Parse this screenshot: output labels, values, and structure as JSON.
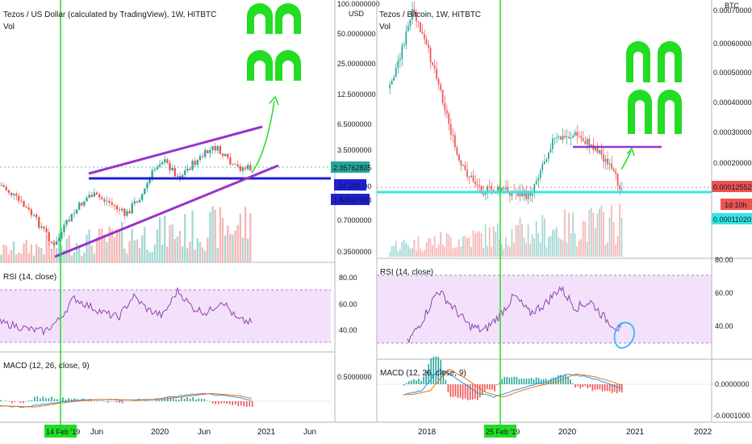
{
  "left_chart": {
    "title": "Tezos / US Dollar (calculated by TradingView), 1W, HITBTC",
    "vol_label": "Vol",
    "currency": "USD",
    "price_scale": [
      "100.0000000",
      "50.0000000",
      "25.0000000",
      "12.5000000",
      "6.5000000",
      "3.5000000",
      "1.5000000",
      "0.7000000",
      "0.3500000"
    ],
    "last_price": "2.35762835",
    "countdown": "1d 10h",
    "level_price": "1.84517693",
    "rsi_label": "RSI (14, close)",
    "rsi_scale": [
      "80.00",
      "60.00",
      "40.00"
    ],
    "macd_label": "MACD (12, 26, close, 9)",
    "macd_scale": [
      "0.5000000"
    ],
    "time_axis": [
      "Jun",
      "2020",
      "Jun",
      "2021",
      "Jun"
    ],
    "highlighted_date": "14 Feb '19"
  },
  "right_chart": {
    "title": "Tezos / Bitcoin, 1W, HITBTC",
    "vol_label": "Vol",
    "currency": "BTC",
    "price_scale": [
      "0.00070000",
      "0.00060000",
      "0.00050000",
      "0.00040000",
      "0.00030000",
      "0.00020000"
    ],
    "last_price": "0.00012552",
    "countdown": "1d 10h",
    "level_price": "0.00011020",
    "rsi_label": "RSI (14, close)",
    "rsi_scale": [
      "80.00",
      "60.00",
      "40.00"
    ],
    "macd_label": "MACD (12, 26, close, 9)",
    "macd_scale": [
      "0.0000000",
      "-0.0001000"
    ],
    "time_axis": [
      "2018",
      "2019",
      "2020",
      "2021",
      "2022"
    ],
    "highlighted_date": "25 Feb '19"
  },
  "colors": {
    "bull": "#26a69a",
    "bear": "#ef5350",
    "rsi_line": "#8e44ad",
    "rsi_band": "#f3e1fb",
    "vertical_marker": "#22dd22",
    "support_blue": "#1f1fd6",
    "support_cyan": "#33e6e6",
    "channel": "#9933cc",
    "arrow": "#22dd22",
    "macd_line": "#2196f3",
    "signal_line": "#ff6d00",
    "circle": "#33bbee"
  },
  "chart_data": [
    {
      "type": "line",
      "title": "Tezos / US Dollar (calculated by TradingView), 1W, HITBTC",
      "y_scale": "log",
      "x": [
        "2019-02",
        "2019-04",
        "2019-06",
        "2019-08",
        "2019-10",
        "2019-12",
        "2020-02",
        "2020-04",
        "2020-06",
        "2020-08",
        "2020-10",
        "2020-11"
      ],
      "series": [
        {
          "values": [
            0.38,
            0.8,
            1.3,
            1.1,
            0.8,
            1.35,
            2.9,
            1.9,
            2.8,
            3.8,
            2.4,
            2.36
          ]
        }
      ],
      "ylim": [
        0.3,
        100
      ]
    },
    {
      "type": "line",
      "title": "Tezos / Bitcoin, 1W, HITBTC",
      "x": [
        "2017-07",
        "2018-01",
        "2018-06",
        "2018-09",
        "2019-01",
        "2019-06",
        "2019-12",
        "2020-03",
        "2020-06",
        "2020-09",
        "2020-11"
      ],
      "series": [
        {
          "values": [
            0.00045,
            0.0007,
            0.0005,
            0.0002,
            0.00012,
            0.00012,
            0.0001,
            0.00028,
            0.0003,
            0.00025,
            0.000126
          ]
        }
      ],
      "ylim": [
        9e-05,
        0.0007
      ]
    }
  ]
}
